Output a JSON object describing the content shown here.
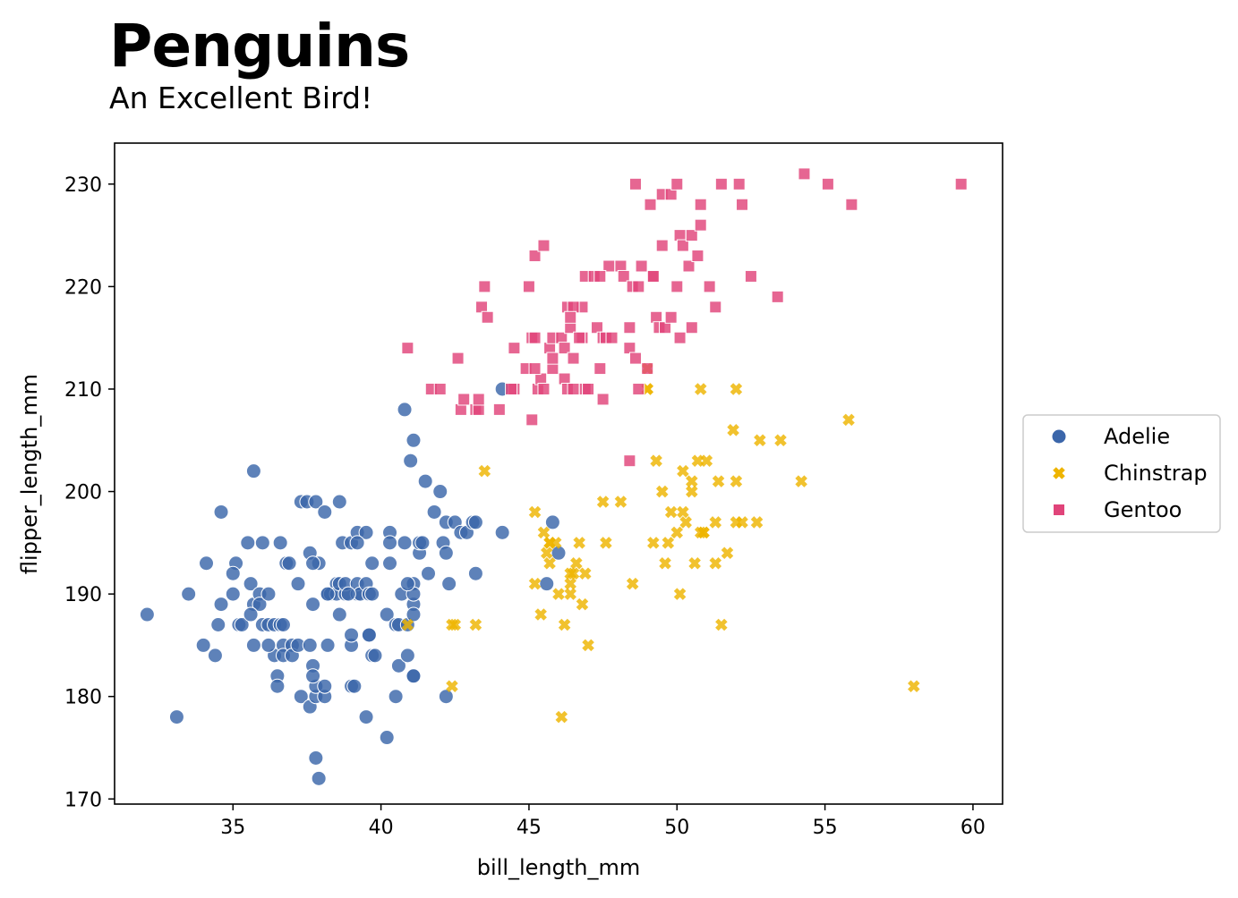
{
  "chart_data": {
    "type": "scatter",
    "title": "Penguins",
    "subtitle": "An Excellent Bird!",
    "xlabel": "bill_length_mm",
    "ylabel": "flipper_length_mm",
    "xlim": [
      31,
      61
    ],
    "ylim": [
      169.5,
      234
    ],
    "xticks": [
      35,
      40,
      45,
      50,
      55,
      60
    ],
    "yticks": [
      170,
      180,
      190,
      200,
      210,
      220,
      230
    ],
    "grid": false,
    "legend_position": "right",
    "series": [
      {
        "name": "Adelie",
        "marker": "circle",
        "color": "#3B66AA",
        "points": [
          [
            32.1,
            188
          ],
          [
            33.1,
            178
          ],
          [
            33.5,
            190
          ],
          [
            34.0,
            185
          ],
          [
            34.1,
            193
          ],
          [
            34.4,
            184
          ],
          [
            34.5,
            187
          ],
          [
            34.6,
            198
          ],
          [
            34.6,
            189
          ],
          [
            35.0,
            190
          ],
          [
            35.1,
            193
          ],
          [
            35.0,
            192
          ],
          [
            35.2,
            187
          ],
          [
            35.3,
            187
          ],
          [
            35.5,
            195
          ],
          [
            35.6,
            191
          ],
          [
            35.7,
            202
          ],
          [
            35.7,
            185
          ],
          [
            35.7,
            189
          ],
          [
            35.9,
            190
          ],
          [
            35.9,
            189
          ],
          [
            36.0,
            195
          ],
          [
            36.0,
            187
          ],
          [
            36.2,
            187
          ],
          [
            36.2,
            190
          ],
          [
            36.4,
            187
          ],
          [
            36.4,
            184
          ],
          [
            36.5,
            182
          ],
          [
            36.5,
            181
          ],
          [
            36.6,
            195
          ],
          [
            36.7,
            185
          ],
          [
            36.7,
            184
          ],
          [
            36.8,
            193
          ],
          [
            36.9,
            193
          ],
          [
            37.0,
            185
          ],
          [
            37.0,
            184
          ],
          [
            37.2,
            185
          ],
          [
            37.3,
            180
          ],
          [
            37.3,
            199
          ],
          [
            37.5,
            199
          ],
          [
            37.6,
            185
          ],
          [
            37.6,
            179
          ],
          [
            37.6,
            194
          ],
          [
            37.7,
            183
          ],
          [
            37.7,
            189
          ],
          [
            37.8,
            180
          ],
          [
            37.8,
            181
          ],
          [
            37.8,
            174
          ],
          [
            37.8,
            199
          ],
          [
            37.9,
            172
          ],
          [
            37.9,
            193
          ],
          [
            37.7,
            193
          ],
          [
            38.1,
            180
          ],
          [
            38.1,
            181
          ],
          [
            38.1,
            198
          ],
          [
            38.2,
            185
          ],
          [
            38.2,
            190
          ],
          [
            38.3,
            190
          ],
          [
            38.5,
            191
          ],
          [
            38.5,
            190
          ],
          [
            38.6,
            188
          ],
          [
            38.6,
            191
          ],
          [
            38.6,
            199
          ],
          [
            38.7,
            195
          ],
          [
            38.8,
            190
          ],
          [
            38.8,
            191
          ],
          [
            39.0,
            195
          ],
          [
            39.0,
            185
          ],
          [
            39.0,
            181
          ],
          [
            39.1,
            181
          ],
          [
            39.2,
            190
          ],
          [
            39.2,
            191
          ],
          [
            39.2,
            196
          ],
          [
            39.3,
            190
          ],
          [
            39.5,
            191
          ],
          [
            39.5,
            178
          ],
          [
            39.5,
            196
          ],
          [
            39.6,
            186
          ],
          [
            39.6,
            186
          ],
          [
            39.6,
            190
          ],
          [
            39.7,
            193
          ],
          [
            39.7,
            184
          ],
          [
            39.7,
            190
          ],
          [
            39.8,
            184
          ],
          [
            40.2,
            188
          ],
          [
            40.2,
            176
          ],
          [
            40.3,
            196
          ],
          [
            40.3,
            195
          ],
          [
            40.3,
            193
          ],
          [
            40.5,
            187
          ],
          [
            40.5,
            180
          ],
          [
            40.6,
            183
          ],
          [
            40.6,
            187
          ],
          [
            40.7,
            190
          ],
          [
            40.8,
            208
          ],
          [
            40.8,
            195
          ],
          [
            40.9,
            184
          ],
          [
            40.9,
            187
          ],
          [
            41.0,
            203
          ],
          [
            41.1,
            205
          ],
          [
            41.1,
            182
          ],
          [
            41.1,
            189
          ],
          [
            41.1,
            191
          ],
          [
            41.1,
            190
          ],
          [
            41.1,
            188
          ],
          [
            41.3,
            194
          ],
          [
            41.3,
            195
          ],
          [
            41.4,
            195
          ],
          [
            41.5,
            201
          ],
          [
            41.6,
            192
          ],
          [
            41.8,
            198
          ],
          [
            42.0,
            200
          ],
          [
            42.1,
            195
          ],
          [
            42.2,
            194
          ],
          [
            42.2,
            197
          ],
          [
            42.3,
            191
          ],
          [
            42.5,
            197
          ],
          [
            42.7,
            196
          ],
          [
            42.9,
            196
          ],
          [
            43.1,
            197
          ],
          [
            43.2,
            197
          ],
          [
            43.2,
            192
          ],
          [
            44.1,
            196
          ],
          [
            44.1,
            210
          ],
          [
            45.6,
            191
          ],
          [
            45.8,
            197
          ],
          [
            46.0,
            194
          ],
          [
            42.2,
            180
          ],
          [
            41.1,
            182
          ],
          [
            36.6,
            187
          ],
          [
            36.7,
            187
          ],
          [
            38.9,
            190
          ],
          [
            39.0,
            186
          ],
          [
            40.9,
            191
          ],
          [
            39.2,
            195
          ],
          [
            38.2,
            190
          ],
          [
            37.2,
            191
          ],
          [
            37.7,
            182
          ],
          [
            36.2,
            185
          ],
          [
            35.6,
            188
          ]
        ]
      },
      {
        "name": "Chinstrap",
        "marker": "x",
        "color": "#EEB400",
        "points": [
          [
            40.9,
            187
          ],
          [
            42.4,
            187
          ],
          [
            42.5,
            187
          ],
          [
            42.4,
            181
          ],
          [
            43.2,
            187
          ],
          [
            43.5,
            202
          ],
          [
            45.2,
            198
          ],
          [
            45.2,
            191
          ],
          [
            45.4,
            188
          ],
          [
            45.5,
            196
          ],
          [
            45.6,
            194
          ],
          [
            45.7,
            195
          ],
          [
            45.7,
            193
          ],
          [
            45.9,
            195
          ],
          [
            46.0,
            190
          ],
          [
            46.1,
            178
          ],
          [
            46.2,
            187
          ],
          [
            46.4,
            191
          ],
          [
            46.4,
            190
          ],
          [
            46.5,
            192
          ],
          [
            46.6,
            193
          ],
          [
            46.7,
            195
          ],
          [
            46.8,
            189
          ],
          [
            46.9,
            192
          ],
          [
            47.0,
            185
          ],
          [
            47.5,
            199
          ],
          [
            47.6,
            195
          ],
          [
            48.1,
            199
          ],
          [
            48.5,
            191
          ],
          [
            49.0,
            210
          ],
          [
            49.0,
            212
          ],
          [
            49.2,
            195
          ],
          [
            49.3,
            203
          ],
          [
            49.5,
            200
          ],
          [
            49.6,
            193
          ],
          [
            49.7,
            195
          ],
          [
            49.8,
            198
          ],
          [
            50.0,
            196
          ],
          [
            50.1,
            190
          ],
          [
            50.2,
            198
          ],
          [
            50.2,
            202
          ],
          [
            50.3,
            197
          ],
          [
            50.5,
            200
          ],
          [
            50.5,
            201
          ],
          [
            50.6,
            193
          ],
          [
            50.7,
            203
          ],
          [
            50.8,
            210
          ],
          [
            50.8,
            196
          ],
          [
            50.9,
            196
          ],
          [
            51.0,
            203
          ],
          [
            51.3,
            193
          ],
          [
            51.3,
            197
          ],
          [
            51.4,
            201
          ],
          [
            51.5,
            187
          ],
          [
            51.7,
            194
          ],
          [
            51.9,
            206
          ],
          [
            52.0,
            210
          ],
          [
            52.0,
            201
          ],
          [
            52.0,
            197
          ],
          [
            52.2,
            197
          ],
          [
            52.7,
            197
          ],
          [
            52.8,
            205
          ],
          [
            53.5,
            205
          ],
          [
            54.2,
            201
          ],
          [
            55.8,
            207
          ],
          [
            58.0,
            181
          ],
          [
            49.0,
            210
          ],
          [
            45.7,
            195
          ],
          [
            50.9,
            196
          ],
          [
            46.4,
            192
          ]
        ]
      },
      {
        "name": "Gentoo",
        "marker": "square",
        "color": "#E0447A",
        "points": [
          [
            40.9,
            214
          ],
          [
            41.7,
            210
          ],
          [
            42.0,
            210
          ],
          [
            42.6,
            213
          ],
          [
            42.7,
            208
          ],
          [
            42.8,
            209
          ],
          [
            43.2,
            208
          ],
          [
            43.3,
            208
          ],
          [
            43.3,
            209
          ],
          [
            43.4,
            218
          ],
          [
            43.5,
            220
          ],
          [
            43.6,
            217
          ],
          [
            44.0,
            208
          ],
          [
            44.5,
            214
          ],
          [
            44.9,
            212
          ],
          [
            45.0,
            220
          ],
          [
            45.1,
            215
          ],
          [
            45.1,
            207
          ],
          [
            45.2,
            215
          ],
          [
            45.2,
            223
          ],
          [
            45.3,
            210
          ],
          [
            45.4,
            211
          ],
          [
            45.5,
            210
          ],
          [
            45.7,
            214
          ],
          [
            45.8,
            215
          ],
          [
            45.8,
            212
          ],
          [
            46.1,
            215
          ],
          [
            46.2,
            211
          ],
          [
            46.2,
            214
          ],
          [
            46.3,
            210
          ],
          [
            46.4,
            216
          ],
          [
            46.5,
            210
          ],
          [
            46.5,
            213
          ],
          [
            46.8,
            215
          ],
          [
            46.9,
            221
          ],
          [
            47.2,
            221
          ],
          [
            47.3,
            216
          ],
          [
            47.4,
            212
          ],
          [
            47.5,
            209
          ],
          [
            47.5,
            215
          ],
          [
            47.6,
            215
          ],
          [
            47.7,
            222
          ],
          [
            48.1,
            222
          ],
          [
            48.2,
            221
          ],
          [
            48.4,
            214
          ],
          [
            48.4,
            216
          ],
          [
            48.5,
            220
          ],
          [
            48.6,
            230
          ],
          [
            48.7,
            210
          ],
          [
            48.8,
            222
          ],
          [
            49.0,
            212
          ],
          [
            49.1,
            228
          ],
          [
            49.2,
            221
          ],
          [
            49.3,
            217
          ],
          [
            49.4,
            216
          ],
          [
            49.5,
            229
          ],
          [
            49.6,
            216
          ],
          [
            49.8,
            229
          ],
          [
            50.0,
            220
          ],
          [
            50.0,
            230
          ],
          [
            50.1,
            225
          ],
          [
            50.2,
            224
          ],
          [
            50.4,
            222
          ],
          [
            50.5,
            225
          ],
          [
            50.5,
            216
          ],
          [
            50.7,
            223
          ],
          [
            50.8,
            228
          ],
          [
            51.1,
            220
          ],
          [
            51.3,
            218
          ],
          [
            51.5,
            230
          ],
          [
            52.1,
            230
          ],
          [
            52.2,
            228
          ],
          [
            52.5,
            221
          ],
          [
            53.4,
            219
          ],
          [
            54.3,
            231
          ],
          [
            55.1,
            230
          ],
          [
            55.9,
            228
          ],
          [
            59.6,
            230
          ],
          [
            44.5,
            210
          ],
          [
            44.4,
            210
          ],
          [
            47.8,
            215
          ],
          [
            46.7,
            215
          ],
          [
            48.6,
            213
          ],
          [
            46.3,
            218
          ],
          [
            45.5,
            224
          ],
          [
            46.8,
            218
          ],
          [
            47.4,
            221
          ],
          [
            50.1,
            215
          ],
          [
            49.8,
            217
          ],
          [
            46.9,
            210
          ],
          [
            45.2,
            212
          ],
          [
            48.4,
            203
          ],
          [
            49.2,
            221
          ],
          [
            50.8,
            226
          ],
          [
            49.5,
            224
          ],
          [
            48.7,
            220
          ],
          [
            46.5,
            218
          ],
          [
            46.4,
            217
          ],
          [
            47.0,
            210
          ],
          [
            45.8,
            213
          ]
        ]
      }
    ]
  }
}
